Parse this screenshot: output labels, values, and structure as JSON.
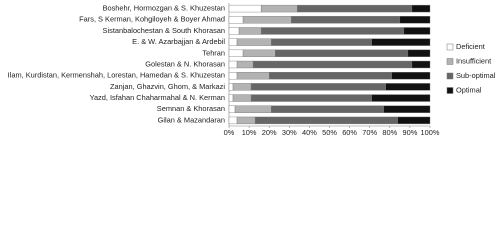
{
  "chart_data": {
    "type": "stacked-bar-horizontal",
    "categories": [
      "Boshehr, Hormozgan & S. Khuzestan",
      "Fars, S Kerman, Kohgiloyeh & Boyer Ahmad",
      "Sistanbalochestan & South Khorasan",
      "E. & W. Azarbajjan & Ardebil",
      "Tehran",
      "Golestan & N. Khorasan",
      "Ilam, Kurdistan, Kermenshah, Lorestan, Hamedan & S. Khuzestan",
      "Zanjan, Ghazvin, Ghom, & Markazi",
      "Yazd, Isfahan Chaharmahal & N. Kerman",
      "Semnan & Khorasan",
      "Gilan & Mazandaran"
    ],
    "series": [
      {
        "name": "Deficient",
        "color": "#ffffff",
        "values": [
          16,
          7,
          5,
          4,
          7,
          4,
          4,
          2,
          2,
          3,
          4
        ]
      },
      {
        "name": "Insufficient",
        "color": "#b3b3b3",
        "values": [
          18,
          24,
          11,
          17,
          16,
          8,
          16,
          9,
          9,
          18,
          9
        ]
      },
      {
        "name": "Sub-optimal",
        "color": "#666666",
        "values": [
          57,
          54,
          71,
          50,
          66,
          79,
          61,
          67,
          60,
          56,
          71
        ]
      },
      {
        "name": "Optimal",
        "color": "#111111",
        "values": [
          9,
          15,
          13,
          29,
          11,
          9,
          19,
          22,
          29,
          23,
          16
        ]
      }
    ],
    "xlim": [
      0,
      100
    ],
    "xticks": [
      {
        "value": 0,
        "label": "0%"
      },
      {
        "value": 10,
        "label": "10%"
      },
      {
        "value": 20,
        "label": "20%"
      },
      {
        "value": 30,
        "label": "30%"
      },
      {
        "value": 40,
        "label": "40%"
      },
      {
        "value": 50,
        "label": "50%"
      },
      {
        "value": 60,
        "label": "60%"
      },
      {
        "value": 70,
        "label": "70%"
      },
      {
        "value": 80,
        "label": "80%"
      },
      {
        "value": 90,
        "label": "90%"
      },
      {
        "value": 100,
        "label": "100%"
      }
    ],
    "legend": "right"
  }
}
